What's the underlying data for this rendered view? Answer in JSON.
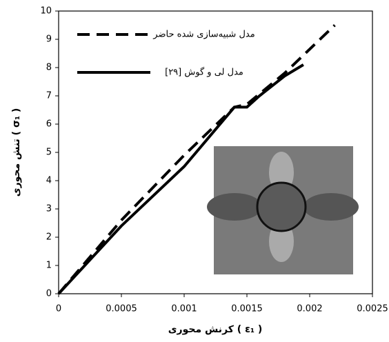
{
  "chart_data": {
    "type": "line",
    "xlabel": "کرنش محوری ( ε₁ )",
    "ylabel": "تنش محوری ( σ₁ )",
    "xlim": [
      0,
      0.0025
    ],
    "xticks": [
      0,
      0.0005,
      0.001,
      0.0015,
      0.002,
      0.0025
    ],
    "ylim": [
      0,
      10
    ],
    "yticks": [
      0,
      1,
      2,
      3,
      4,
      5,
      6,
      7,
      8,
      9,
      10
    ],
    "series": [
      {
        "name": "مدل شبیه‌سازی شده حاضر",
        "color": "#000000",
        "line_style": "dashed",
        "x": [
          0,
          0.0005,
          0.001,
          0.0014,
          0.0015,
          0.0018,
          0.0022
        ],
        "values": [
          0,
          2.6,
          4.9,
          6.6,
          6.7,
          7.8,
          9.5
        ]
      },
      {
        "name": "مدل لی و گوش [۲۹]",
        "color": "#000000",
        "line_style": "solid",
        "x": [
          0,
          0.0005,
          0.001,
          0.0014,
          0.0015,
          0.0016,
          0.0018,
          0.00195
        ],
        "values": [
          0,
          2.4,
          4.5,
          6.6,
          6.6,
          7.0,
          7.7,
          8.1
        ]
      }
    ]
  }
}
